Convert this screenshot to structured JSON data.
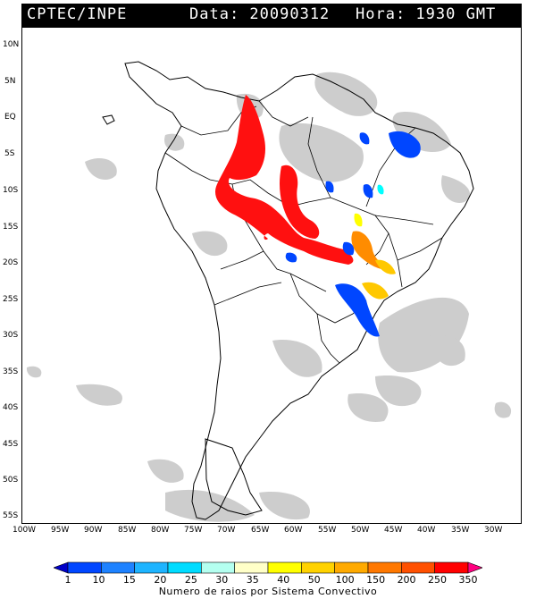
{
  "header": {
    "agency": "CPTEC/INPE",
    "date_text": "Data: 20090312",
    "time_text": "Hora: 1930 GMT"
  },
  "map": {
    "lat_labels": [
      "10N",
      "5N",
      "EQ",
      "5S",
      "10S",
      "15S",
      "20S",
      "25S",
      "30S",
      "35S",
      "40S",
      "45S",
      "50S",
      "55S"
    ],
    "lon_labels": [
      "100W",
      "95W",
      "90W",
      "85W",
      "80W",
      "75W",
      "70W",
      "65W",
      "60W",
      "55W",
      "50W",
      "45W",
      "40W",
      "35W",
      "30W"
    ],
    "colors": {
      "cloud": "#c8c8c8",
      "outline": "#000000",
      "red": "#ff1010",
      "orange": "#ff8c00",
      "gold": "#ffc800",
      "yellow": "#ffff00",
      "blue": "#0046ff",
      "light_blue": "#1e96ff",
      "cyan": "#00ffff"
    }
  },
  "colorbar": {
    "title": "Numero de raios por Sistema Convectivo",
    "ticks": [
      "1",
      "10",
      "15",
      "20",
      "25",
      "30",
      "35",
      "40",
      "50",
      "100",
      "150",
      "200",
      "250",
      "350"
    ],
    "colors": [
      "#0000c8",
      "#0046ff",
      "#1e82ff",
      "#1eb4ff",
      "#00dcff",
      "#b4fff0",
      "#ffffc8",
      "#ffff00",
      "#ffd200",
      "#ffaa00",
      "#ff7800",
      "#ff5000",
      "#ff0000",
      "#ff0080"
    ]
  }
}
